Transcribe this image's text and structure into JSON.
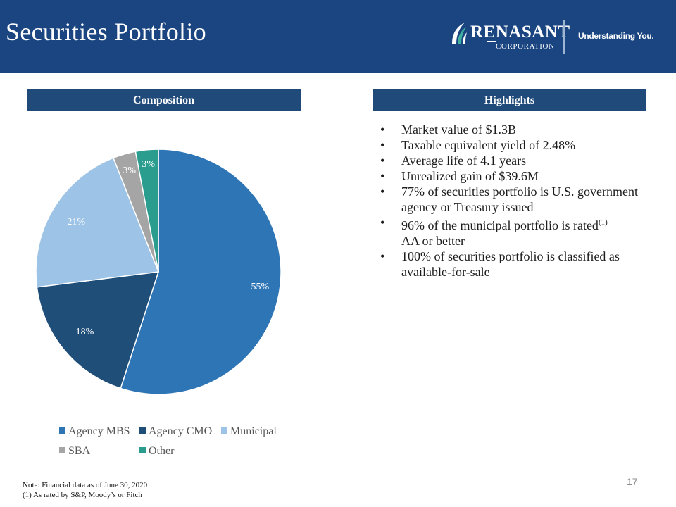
{
  "header": {
    "title": "Securities Portfolio",
    "logo_name": "RENASANT",
    "logo_subtitle": "CORPORATION",
    "tagline": "Understanding You."
  },
  "sections": {
    "left_title": "Composition",
    "right_title": "Highlights"
  },
  "chart_data": {
    "type": "pie",
    "categories": [
      "Agency MBS",
      "Agency CMO",
      "Municipal",
      "SBA",
      "Other"
    ],
    "values": [
      55,
      18,
      21,
      3,
      3
    ],
    "value_labels": [
      "55%",
      "18%",
      "21%",
      "3%",
      "3%"
    ],
    "colors": [
      "#2e75b6",
      "#1f4e79",
      "#9dc3e6",
      "#a5a5a5",
      "#2a9d8f"
    ],
    "start": "12 o'clock",
    "direction": "clockwise",
    "legend_position": "bottom"
  },
  "highlights": [
    {
      "text": "Market value of $1.3B"
    },
    {
      "text": "Taxable equivalent yield of 2.48%"
    },
    {
      "text": "Average life of 4.1 years"
    },
    {
      "text": "Unrealized gain of $39.6M"
    },
    {
      "text": "77% of securities portfolio is U.S. government agency or Treasury issued"
    },
    {
      "text": "96% of the municipal portfolio is rated",
      "sup": "(1)",
      "text_after": "AA or better"
    },
    {
      "text": "100% of securities portfolio is classified as available-for-sale"
    }
  ],
  "bullet_char": "•",
  "footnotes": {
    "note": "Note: Financial data as of June 30, 2020",
    "ref": "(1) As rated by S&P, Moody’s or Fitch"
  },
  "page_number": "17"
}
